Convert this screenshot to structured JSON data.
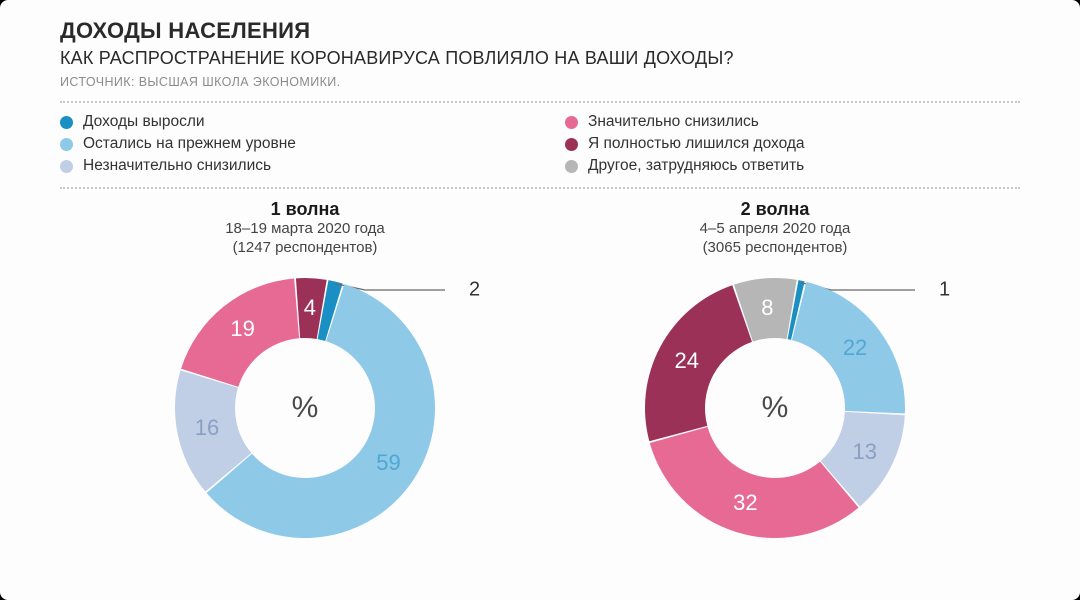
{
  "header": {
    "title": "ДОХОДЫ НАСЕЛЕНИЯ",
    "subtitle": "КАК РАСПРОСТРАНЕНИЕ КОРОНАВИРУСА ПОВЛИЯЛО НА ВАШИ ДОХОДЫ?",
    "source": "ИСТОЧНИК: ВЫСШАЯ ШКОЛА ЭКОНОМИКИ."
  },
  "legend": [
    {
      "label": "Доходы выросли",
      "color": "#1a8fc4"
    },
    {
      "label": "Остались на прежнем уровне",
      "color": "#8ec9e8"
    },
    {
      "label": "Незначительно снизились",
      "color": "#c0cfe6"
    },
    {
      "label": "Значительно снизились",
      "color": "#e66a93"
    },
    {
      "label": "Я полностью лишился дохода",
      "color": "#9c3158"
    },
    {
      "label": "Другое, затрудняюсь ответить",
      "color": "#b6b6b6"
    }
  ],
  "charts": {
    "left": {
      "title": "1 волна",
      "date": "18–19 марта 2020 года",
      "respondents": "(1247 респондентов)",
      "center_symbol": "%",
      "donut": {
        "outer_r": 130,
        "inner_r": 70,
        "size": 280,
        "gap_deg": 0.8,
        "start_angle_deg": -80,
        "segments": [
          {
            "key": "grew",
            "value": 2,
            "color": "#1a8fc4",
            "callout": true
          },
          {
            "key": "same",
            "value": 59,
            "color": "#8ec9e8",
            "label_color": "#4fa8d2"
          },
          {
            "key": "slight_down",
            "value": 16,
            "color": "#c0cfe6",
            "label_color": "#8a9fc4"
          },
          {
            "key": "sig_down",
            "value": 19,
            "color": "#e66a93",
            "label_color": "#ffffff"
          },
          {
            "key": "lost_all",
            "value": 4,
            "color": "#9c3158",
            "label_color": "#ffffff"
          }
        ]
      }
    },
    "right": {
      "title": "2 волна",
      "date": "4–5 апреля 2020 года",
      "respondents": "(3065 респондентов)",
      "center_symbol": "%",
      "donut": {
        "outer_r": 130,
        "inner_r": 70,
        "size": 280,
        "gap_deg": 0.8,
        "start_angle_deg": -80,
        "segments": [
          {
            "key": "grew",
            "value": 1,
            "color": "#1a8fc4",
            "callout": true
          },
          {
            "key": "same",
            "value": 22,
            "color": "#8ec9e8",
            "label_color": "#4fa8d2"
          },
          {
            "key": "slight_down",
            "value": 13,
            "color": "#c0cfe6",
            "label_color": "#8a9fc4"
          },
          {
            "key": "sig_down",
            "value": 32,
            "color": "#e66a93",
            "label_color": "#ffffff"
          },
          {
            "key": "lost_all",
            "value": 24,
            "color": "#9c3158",
            "label_color": "#ffffff"
          },
          {
            "key": "other",
            "value": 8,
            "color": "#b6b6b6",
            "label_color": "#ffffff"
          }
        ]
      }
    }
  },
  "style": {
    "background": "#fdfdfd",
    "page_bg": "#000000",
    "title_fontsize": 22,
    "subtitle_fontsize": 18,
    "source_color": "#8b8b8b",
    "dot_rule_color": "#c9c9c9",
    "seg_label_fontsize": 22,
    "center_fontsize": 30
  }
}
